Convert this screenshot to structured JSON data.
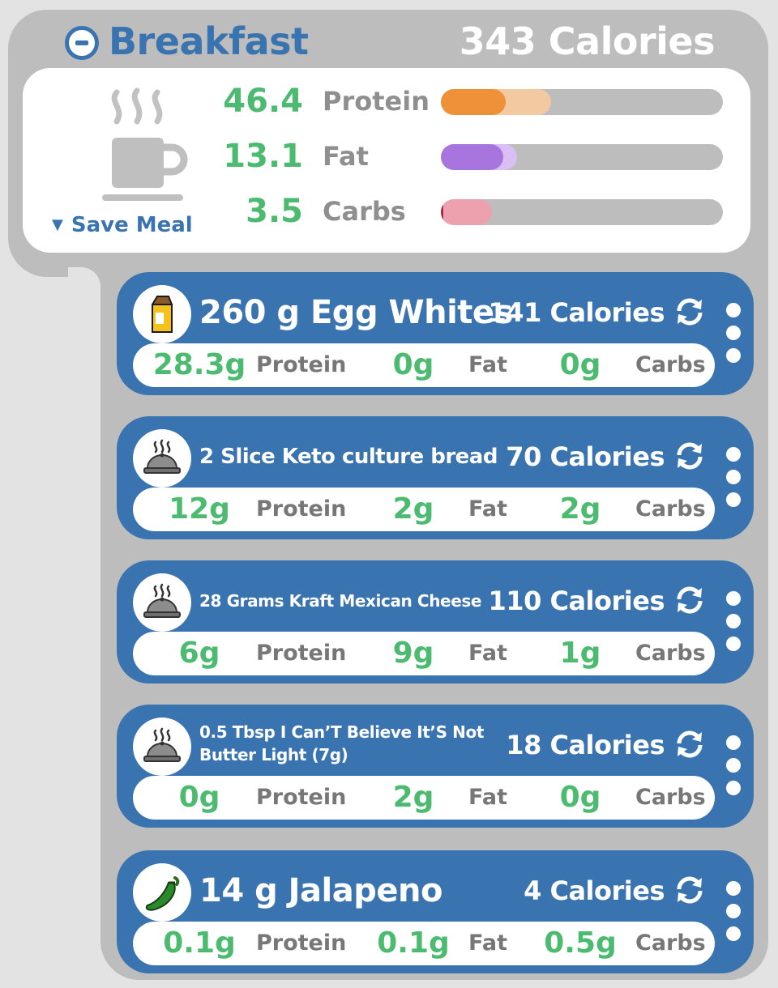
{
  "meal": {
    "title": "Breakfast",
    "calories": "343 Calories",
    "save_label": "Save Meal",
    "macros": [
      {
        "value": "46.4",
        "label": "Protein",
        "fill_a": 0.23,
        "fill_b": 0.39,
        "color_a": "#ef9138",
        "color_b": "#f3c9a1"
      },
      {
        "value": "13.1",
        "label": "Fat",
        "fill_a": 0.22,
        "fill_b": 0.27,
        "color_a": "#a775dd",
        "color_b": "#d9bff3"
      },
      {
        "value": "3.5",
        "label": "Carbs",
        "fill_a": 0.01,
        "fill_b": 0.18,
        "color_a": "#b0283a",
        "color_b": "#eda1ae"
      }
    ]
  },
  "foods": [
    {
      "name": "260 g Egg Whites",
      "calories": "141 Calories",
      "icon": "carton-icon",
      "protein": "28.3g",
      "fat": "0g",
      "carbs": "0g"
    },
    {
      "name": "2 Slice Keto culture bread",
      "calories": "70 Calories",
      "icon": "cloche-icon",
      "protein": "12g",
      "fat": "2g",
      "carbs": "2g"
    },
    {
      "name": "28 Grams Kraft Mexican Cheese",
      "calories": "110 Calories",
      "icon": "cloche-icon",
      "protein": "6g",
      "fat": "9g",
      "carbs": "1g"
    },
    {
      "name": "0.5 Tbsp I Can’T Believe It’S Not Butter Light  (7g)",
      "calories": "18 Calories",
      "icon": "cloche-icon",
      "protein": "0g",
      "fat": "2g",
      "carbs": "0g"
    },
    {
      "name": "14 g Jalapeno",
      "calories": "4 Calories",
      "icon": "pepper-icon",
      "protein": "0.1g",
      "fat": "0.1g",
      "carbs": "0.5g"
    }
  ],
  "labels": {
    "protein": "Protein",
    "fat": "Fat",
    "carbs": "Carbs"
  },
  "colors": {
    "blue": "#3a74b0",
    "green": "#4cbb70",
    "grey": "#bdbdbd"
  }
}
